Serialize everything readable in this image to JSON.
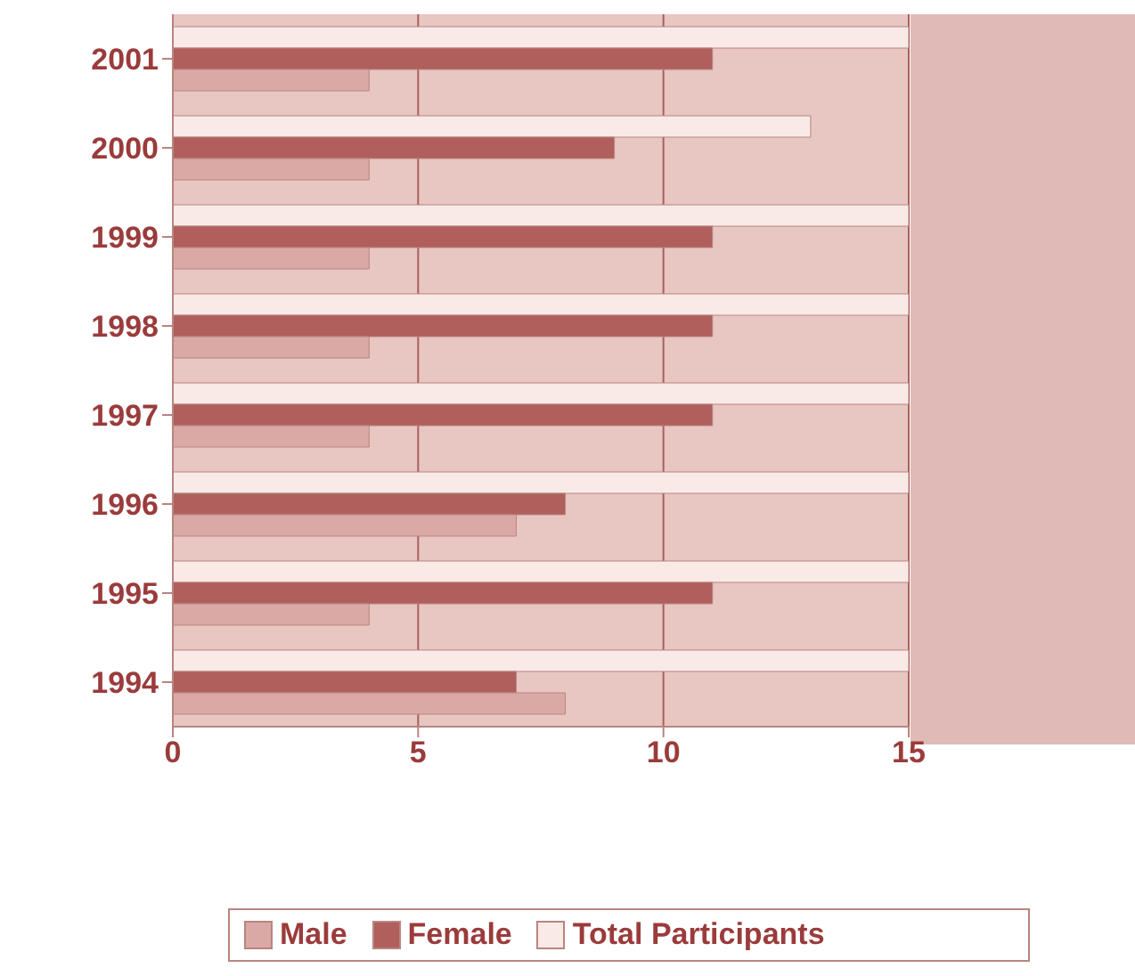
{
  "chart_data": {
    "type": "bar",
    "orientation": "horizontal",
    "categories": [
      "2001",
      "2000",
      "1999",
      "1998",
      "1997",
      "1996",
      "1995",
      "1994"
    ],
    "series": [
      {
        "name": "Male",
        "color": "#dba9a5",
        "values": [
          4,
          4,
          4,
          4,
          4,
          7,
          4,
          8
        ]
      },
      {
        "name": "Female",
        "color": "#b05f5c",
        "values": [
          11,
          9,
          11,
          11,
          11,
          8,
          11,
          7
        ]
      },
      {
        "name": "Total Participants",
        "color": "#faeae7",
        "values": [
          15,
          13,
          15,
          15,
          15,
          15,
          15,
          15
        ]
      }
    ],
    "xlim": [
      0,
      15
    ],
    "xticks": [
      0,
      5,
      10,
      15
    ],
    "grid": "x",
    "legend": "bottom"
  }
}
